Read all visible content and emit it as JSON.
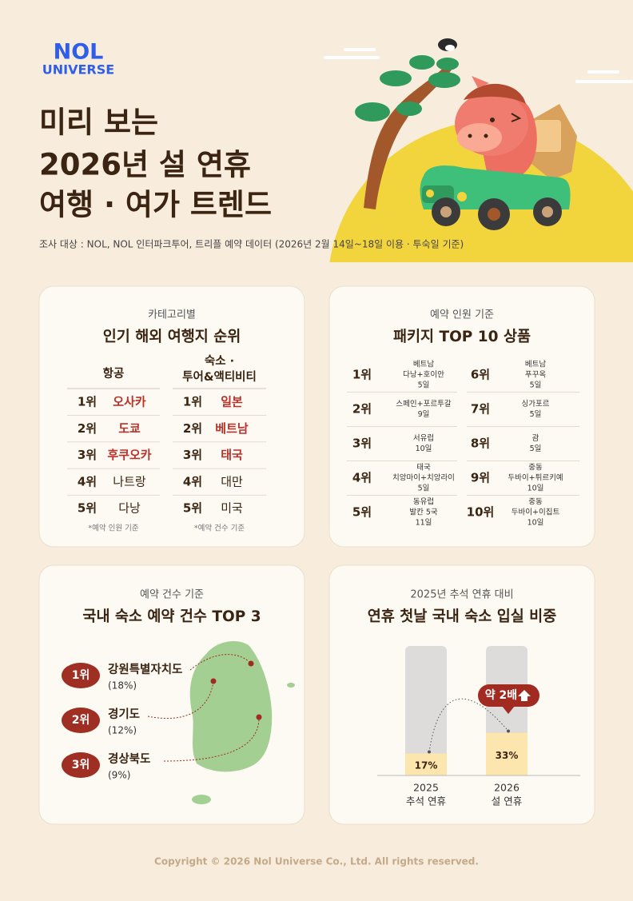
{
  "header": {
    "logo": [
      "NOL",
      "UNIVERSE"
    ],
    "title": [
      "미리 보는",
      "2026년 설 연휴",
      "여행 · 여가 트렌드"
    ],
    "source": "조사 대상 : NOL, NOL 인터파크투어, 트리플 예약 데이터 (2026년 2월 14일~18일 이용 · 투숙일 기준)"
  },
  "card1": {
    "subtitle": "카테고리별",
    "title": "인기 해외 여행지 순위",
    "columns": [
      {
        "header": [
          "항공"
        ],
        "rows": [
          [
            "1위",
            "오사카"
          ],
          [
            "2위",
            "도쿄"
          ],
          [
            "3위",
            "후쿠오카"
          ],
          [
            "4위",
            "나트랑"
          ],
          [
            "5위",
            "다낭"
          ]
        ],
        "note": "*예약 인원 기준"
      },
      {
        "header": [
          "숙소 ·",
          "투어&액티비티"
        ],
        "rows": [
          [
            "1위",
            "일본"
          ],
          [
            "2위",
            "베트남"
          ],
          [
            "3위",
            "태국"
          ],
          [
            "4위",
            "대만"
          ],
          [
            "5위",
            "미국"
          ]
        ],
        "note": "*예약 건수 기준"
      }
    ]
  },
  "card2": {
    "subtitle": "예약 인원 기준",
    "title": "패키지 TOP 10 상품",
    "items": [
      {
        "rank": "1위",
        "lines": [
          "베트남",
          "다낭+호이안",
          "5일"
        ]
      },
      {
        "rank": "2위",
        "lines": [
          "스페인+포르투갈",
          "9일"
        ]
      },
      {
        "rank": "3위",
        "lines": [
          "서유럽",
          "10일"
        ]
      },
      {
        "rank": "4위",
        "lines": [
          "태국",
          "치앙마이+치앙라이",
          "5일"
        ]
      },
      {
        "rank": "5위",
        "lines": [
          "동유럽",
          "발칸 5국",
          "11일"
        ]
      },
      {
        "rank": "6위",
        "lines": [
          "베트남",
          "푸꾸옥",
          "5일"
        ]
      },
      {
        "rank": "7위",
        "lines": [
          "싱가포르",
          "5일"
        ]
      },
      {
        "rank": "8위",
        "lines": [
          "괌",
          "5일"
        ]
      },
      {
        "rank": "9위",
        "lines": [
          "중동",
          "두바이+튀르키예",
          "10일"
        ]
      },
      {
        "rank": "10위",
        "lines": [
          "중동",
          "두바이+이집트",
          "10일"
        ]
      }
    ]
  },
  "card3": {
    "subtitle": "예약 건수 기준",
    "title": "국내 숙소 예약 건수 TOP 3",
    "items": [
      {
        "rank": "1위",
        "name": "강원특별자치도",
        "share": "(18%)"
      },
      {
        "rank": "2위",
        "name": "경기도",
        "share": "(12%)"
      },
      {
        "rank": "3위",
        "name": "경상북도",
        "share": "(9%)"
      }
    ]
  },
  "card4": {
    "subtitle": "2025년 추석 연휴 대비",
    "title": "연휴 첫날 국내 숙소 입실 비중",
    "badge": "약 2배",
    "chart": {
      "type": "bar",
      "categories": [
        [
          "2025",
          "추석 연휴"
        ],
        [
          "2026",
          "설 연휴"
        ]
      ],
      "values": [
        17,
        33
      ],
      "value_labels": [
        "17%",
        "33%"
      ],
      "ylim": [
        0,
        100
      ],
      "color": "#fde6ad",
      "track_color": "#dddcdb"
    }
  },
  "footer": "Copyright © 2026 Nol Universe Co., Ltd. All rights reserved."
}
